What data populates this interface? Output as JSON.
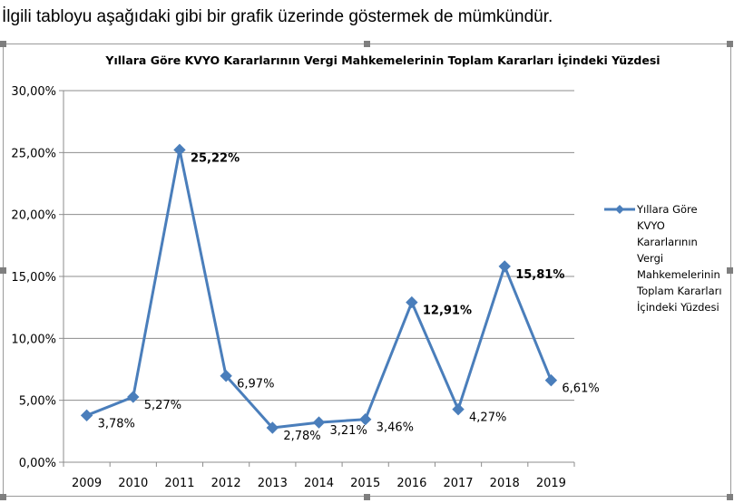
{
  "intro_text": "İlgili tabloyu aşağıdaki gibi bir grafik üzerinde göstermek de mümkündür.",
  "chart_data": {
    "type": "line",
    "title": "Yıllara Göre KVYO Kararlarının Vergi Mahkemelerinin Toplam Kararları İçindeki Yüzdesi",
    "categories": [
      "2009",
      "2010",
      "2011",
      "2012",
      "2013",
      "2014",
      "2015",
      "2016",
      "2017",
      "2018",
      "2019"
    ],
    "series": [
      {
        "name": "Yıllara Göre KVYO Kararlarının Vergi Mahkemelerinin Toplam Kararları İçindeki Yüzdesi",
        "values": [
          3.78,
          5.27,
          25.22,
          6.97,
          2.78,
          3.21,
          3.46,
          12.91,
          4.27,
          15.81,
          6.61
        ],
        "labels": [
          "3,78%",
          "5,27%",
          "25,22%",
          "6,97%",
          "2,78%",
          "3,21%",
          "3,46%",
          "12,91%",
          "4,27%",
          "15,81%",
          "6,61%"
        ],
        "bold_labels": [
          false,
          false,
          true,
          false,
          false,
          false,
          false,
          true,
          false,
          true,
          false
        ],
        "color": "#4a7ebb"
      }
    ],
    "y_ticks": [
      0,
      5,
      10,
      15,
      20,
      25,
      30
    ],
    "y_tick_labels": [
      "0,00%",
      "5,00%",
      "10,00%",
      "15,00%",
      "20,00%",
      "25,00%",
      "30,00%"
    ],
    "ylim": [
      0,
      30
    ],
    "xlabel": "",
    "ylabel": "",
    "grid": true,
    "legend_position": "right",
    "legend_lines": [
      "Yıllara Göre",
      "KVYO",
      "Kararlarının",
      "Vergi",
      "Mahkemelerinin",
      "Toplam Kararları",
      "İçindeki Yüzdesi"
    ]
  }
}
